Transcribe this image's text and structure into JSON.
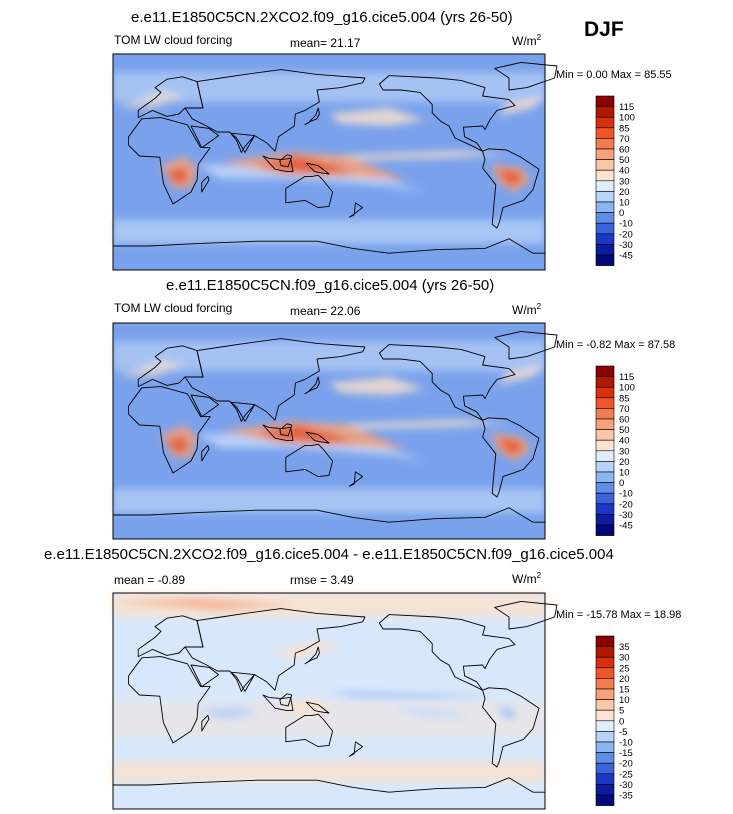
{
  "season": "DJF",
  "panels": [
    {
      "title": "e.e11.E1850C5CN.2XCO2.f09_g16.cice5.004 (yrs 26-50)",
      "variable": "TOM LW cloud forcing",
      "stat1_label": "mean=",
      "stat1_value": "21.17",
      "stat2_label": "",
      "stat2_value": "",
      "units_base": "W/m",
      "units_exp": "2",
      "min_label": "Min =",
      "min_value": "0.00",
      "max_label": "Max =",
      "max_value": "85.55"
    },
    {
      "title": "e.e11.E1850C5CN.f09_g16.cice5.004 (yrs 26-50)",
      "variable": "TOM LW cloud forcing",
      "stat1_label": "mean=",
      "stat1_value": "22.06",
      "stat2_label": "",
      "stat2_value": "",
      "units_base": "W/m",
      "units_exp": "2",
      "min_label": "Min =",
      "min_value": "-0.82",
      "max_label": "Max =",
      "max_value": "87.58"
    },
    {
      "title": "e.e11.E1850C5CN.2XCO2.f09_g16.cice5.004 - e.e11.E1850C5CN.f09_g16.cice5.004",
      "variable": "",
      "stat1_label": "mean =",
      "stat1_value": "-0.89",
      "stat2_label": "rmse =",
      "stat2_value": "3.49",
      "units_base": "W/m",
      "units_exp": "2",
      "min_label": "Min =",
      "min_value": "-15.78",
      "max_label": "Max =",
      "max_value": "18.98"
    }
  ],
  "colorbars": {
    "abs": {
      "labels": [
        "115",
        "100",
        "85",
        "70",
        "60",
        "50",
        "40",
        "30",
        "20",
        "10",
        "0",
        "-10",
        "-20",
        "-30",
        "-45"
      ],
      "colors": [
        "#8b0000",
        "#b01800",
        "#d8300a",
        "#ef5528",
        "#f47a50",
        "#f7a07a",
        "#fac6a8",
        "#fde4d2",
        "#e0eefc",
        "#b8d3f8",
        "#8ab4f2",
        "#5e8ee8",
        "#3a64dc",
        "#1a38c4",
        "#0a1ca0",
        "#00087a"
      ]
    },
    "diff": {
      "labels": [
        "35",
        "30",
        "25",
        "20",
        "15",
        "10",
        "5",
        "0",
        "-5",
        "-10",
        "-15",
        "-20",
        "-25",
        "-30",
        "-35"
      ],
      "colors": [
        "#8b0000",
        "#b01800",
        "#d8300a",
        "#ef5528",
        "#f47a50",
        "#f7a07a",
        "#fac6a8",
        "#fde4d2",
        "#e0eefc",
        "#b8d3f8",
        "#8ab4f2",
        "#5e8ee8",
        "#3a64dc",
        "#1a38c4",
        "#0a1ca0",
        "#00087a"
      ]
    }
  },
  "palette": {
    "field_base": "#7aa2ec",
    "field_light": "#c8dcfa",
    "warm_light": "#fde2cc",
    "warm_mid": "#f7a07a",
    "warm_strong": "#e2552c",
    "diff_base": "#d8e8fc",
    "diff_warm": "#fde2cc",
    "coast": "#000000"
  }
}
